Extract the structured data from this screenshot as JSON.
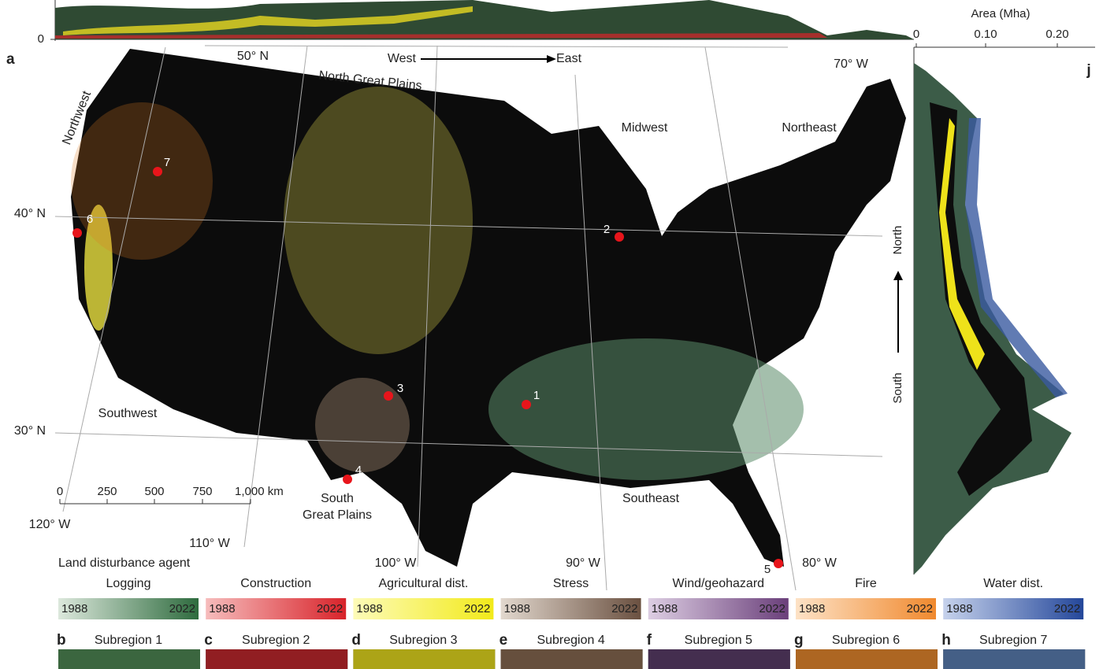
{
  "top_panel": {
    "y_tick": "0"
  },
  "right_panel": {
    "panel_label": "j",
    "axis_title": "Area (Mha)",
    "ticks": [
      "0",
      "0.10",
      "0.20"
    ],
    "north": "North",
    "south": "South"
  },
  "map": {
    "panel_label": "a",
    "west": "West",
    "east": "East",
    "regions": [
      "North Great Plains",
      "Northwest",
      "Midwest",
      "Northeast",
      "Southwest",
      [
        "South",
        "Great Plains"
      ],
      "Southeast"
    ],
    "graticule": [
      "50° N",
      "70° W",
      "40° N",
      "30° N",
      "120° W",
      "110° W",
      "100° W",
      "90° W",
      "80° W"
    ],
    "sites": [
      "1",
      "2",
      "3",
      "4",
      "5",
      "6",
      "7"
    ],
    "scale_bar": [
      "0",
      "250",
      "500",
      "750",
      "1,000 km"
    ]
  },
  "legend": {
    "title": "Land disturbance agent",
    "start": "1988",
    "end": "2022",
    "agents": [
      {
        "name": "Logging",
        "colors": [
          "#dce8dc",
          "#2e6b3e"
        ]
      },
      {
        "name": "Construction",
        "colors": [
          "#f6bcbc",
          "#d8232a"
        ]
      },
      {
        "name": "Agricultural dist.",
        "colors": [
          "#fdfbb8",
          "#f2ea1a"
        ]
      },
      {
        "name": "Stress",
        "colors": [
          "#e2d8ce",
          "#6a5040"
        ]
      },
      {
        "name": "Wind/geohazard",
        "colors": [
          "#ddcee3",
          "#6a3f7a"
        ]
      },
      {
        "name": "Fire",
        "colors": [
          "#fde2c6",
          "#f0892e"
        ]
      },
      {
        "name": "Water dist.",
        "colors": [
          "#c6d2ec",
          "#24479a"
        ]
      }
    ]
  },
  "subregions": [
    {
      "label": "b",
      "title": "Subregion 1",
      "color": "#4d8a52"
    },
    {
      "label": "c",
      "title": "Subregion 2",
      "color": "#c8232a"
    },
    {
      "label": "d",
      "title": "Subregion 3",
      "color": "#eee21a"
    },
    {
      "label": "e",
      "title": "Subregion 4",
      "color": "#8a6a50"
    },
    {
      "label": "f",
      "title": "Subregion 5",
      "color": "#5a3a6a"
    },
    {
      "label": "g",
      "title": "Subregion 6",
      "color": "#f08a2a"
    },
    {
      "label": "h",
      "title": "Subregion 7",
      "color": "#5a80b8"
    }
  ]
}
